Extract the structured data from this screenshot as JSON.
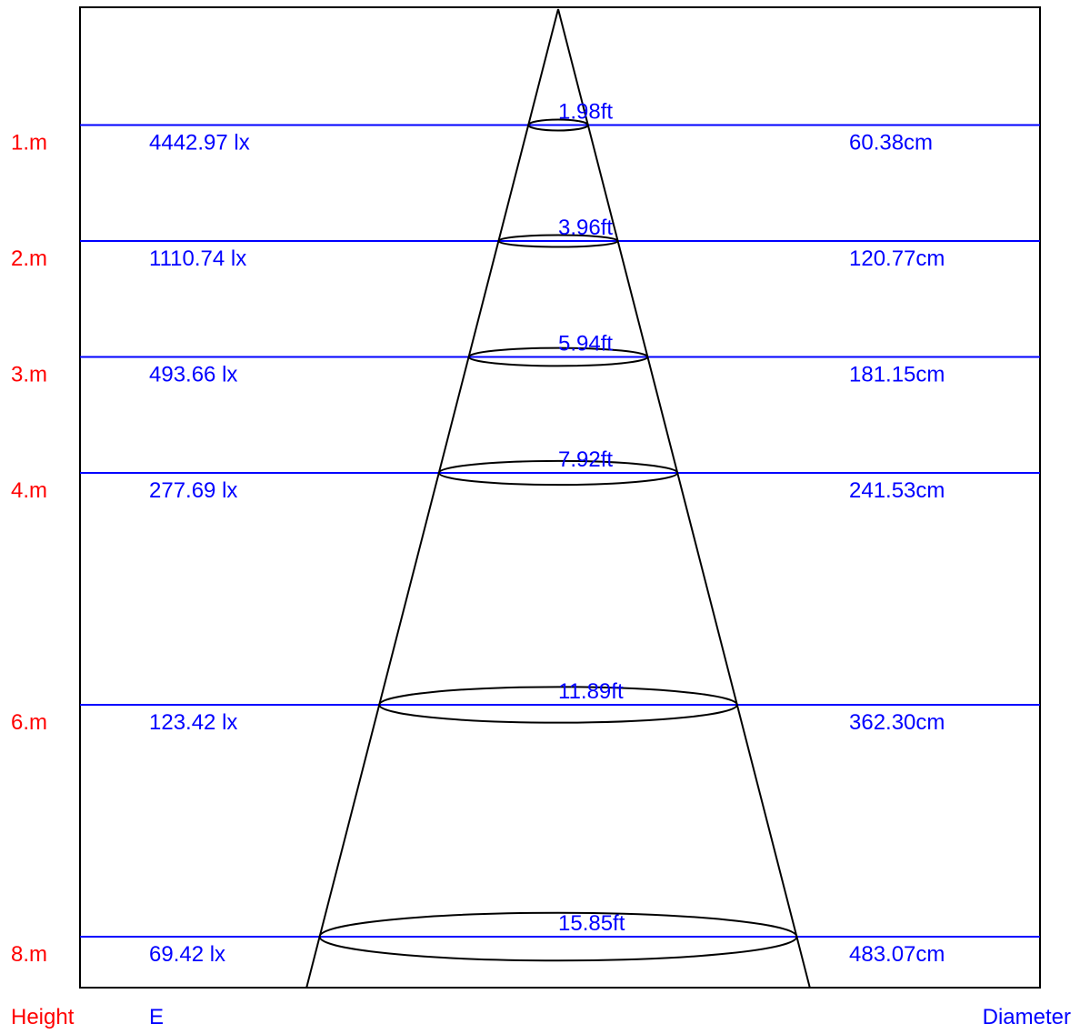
{
  "colors": {
    "frame": "#000000",
    "level_line": "#0000ff",
    "height_text": "#ff0000",
    "value_text": "#0000ff",
    "cone": "#000000"
  },
  "columns": {
    "height": "Height",
    "illuminance": "E",
    "diameter": "Diameter"
  },
  "levels": [
    {
      "height_label": "1.m",
      "height_m": 1,
      "illuminance": "4442.97 lx",
      "diameter_cm": "60.38cm",
      "diameter_ft": "1.98ft"
    },
    {
      "height_label": "2.m",
      "height_m": 2,
      "illuminance": "1110.74 lx",
      "diameter_cm": "120.77cm",
      "diameter_ft": "3.96ft"
    },
    {
      "height_label": "3.m",
      "height_m": 3,
      "illuminance": "493.66 lx",
      "diameter_cm": "181.15cm",
      "diameter_ft": "5.94ft"
    },
    {
      "height_label": "4.m",
      "height_m": 4,
      "illuminance": "277.69 lx",
      "diameter_cm": "241.53cm",
      "diameter_ft": "7.92ft"
    },
    {
      "height_label": "6.m",
      "height_m": 6,
      "illuminance": "123.42 lx",
      "diameter_cm": "362.30cm",
      "diameter_ft": "11.89ft"
    },
    {
      "height_label": "8.m",
      "height_m": 8,
      "illuminance": "69.42 lx",
      "diameter_cm": "483.07cm",
      "diameter_ft": "15.85ft"
    }
  ]
}
